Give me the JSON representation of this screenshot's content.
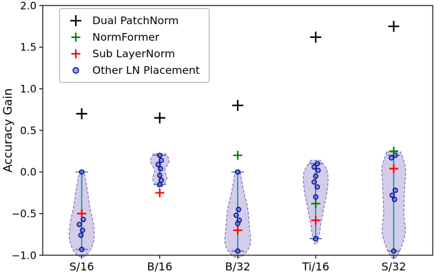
{
  "chart_data": {
    "type": "violin+scatter",
    "title": "",
    "xlabel": "",
    "ylabel": "Accuracy Gain",
    "ylim": [
      -1.0,
      2.0
    ],
    "yticks": [
      {
        "v": -1.0,
        "label": "−1.0"
      },
      {
        "v": -0.5,
        "label": "−0.5"
      },
      {
        "v": 0.0,
        "label": "0.0"
      },
      {
        "v": 0.5,
        "label": "0.5"
      },
      {
        "v": 1.0,
        "label": "1.0"
      },
      {
        "v": 1.5,
        "label": "1.5"
      },
      {
        "v": 2.0,
        "label": "2.0"
      }
    ],
    "categories": [
      "S/16",
      "B/16",
      "B/32",
      "Ti/16",
      "S/32"
    ],
    "legend": [
      {
        "label": "Dual PatchNorm",
        "marker": "plus",
        "color": "#000000"
      },
      {
        "label": "NormFormer",
        "marker": "plus",
        "color": "#008000"
      },
      {
        "label": "Sub LayerNorm",
        "marker": "plus",
        "color": "#ff0000"
      },
      {
        "label": "Other LN Placement",
        "marker": "circle",
        "color": "#00008b"
      }
    ],
    "series": {
      "dual_patchnorm": [
        0.7,
        0.65,
        0.8,
        1.62,
        1.75
      ],
      "normformer": [
        null,
        null,
        0.2,
        -0.38,
        0.25
      ],
      "sub_layernorm": [
        -0.5,
        -0.25,
        -0.7,
        -0.58,
        0.04
      ],
      "other_ln_placement": [
        [
          [
            0.0,
            0
          ],
          [
            -0.57,
            0.02
          ],
          [
            -0.63,
            -0.03
          ],
          [
            -0.7,
            0.01
          ],
          [
            -0.76,
            -0.01
          ],
          [
            -0.93,
            0
          ]
        ],
        [
          [
            0.2,
            0
          ],
          [
            0.14,
            0.02
          ],
          [
            0.09,
            -0.02
          ],
          [
            0.04,
            0.01
          ],
          [
            -0.04,
            0
          ],
          [
            -0.1,
            0.02
          ],
          [
            -0.15,
            0
          ]
        ],
        [
          [
            0.0,
            0
          ],
          [
            -0.45,
            0.01
          ],
          [
            -0.52,
            -0.02
          ],
          [
            -0.58,
            0.02
          ],
          [
            -0.62,
            0
          ],
          [
            -0.95,
            0
          ]
        ],
        [
          [
            0.1,
            0.02
          ],
          [
            0.06,
            -0.02
          ],
          [
            0.02,
            0.03
          ],
          [
            -0.05,
            0
          ],
          [
            -0.12,
            -0.02
          ],
          [
            -0.18,
            0.02
          ],
          [
            -0.3,
            0
          ],
          [
            -0.8,
            0
          ]
        ],
        [
          [
            0.2,
            0.02
          ],
          [
            0.17,
            -0.03
          ],
          [
            -0.22,
            0.02
          ],
          [
            -0.28,
            -0.02
          ],
          [
            -0.33,
            0.01
          ],
          [
            -0.95,
            0
          ]
        ]
      ]
    },
    "violins": [
      {
        "profile": [
          [
            0.02,
            0.025
          ],
          [
            -0.2,
            0.07
          ],
          [
            -0.4,
            0.1
          ],
          [
            -0.6,
            0.145
          ],
          [
            -0.78,
            0.16
          ],
          [
            -0.92,
            0.12
          ],
          [
            -1.01,
            0.04
          ]
        ]
      },
      {
        "profile": [
          [
            0.22,
            0.08
          ],
          [
            0.13,
            0.12
          ],
          [
            0.02,
            0.065
          ],
          [
            -0.08,
            0.09
          ],
          [
            -0.17,
            0.035
          ]
        ]
      },
      {
        "profile": [
          [
            0.02,
            0.03
          ],
          [
            -0.2,
            0.07
          ],
          [
            -0.45,
            0.13
          ],
          [
            -0.65,
            0.15
          ],
          [
            -0.87,
            0.16
          ],
          [
            -1.01,
            0.06
          ]
        ]
      },
      {
        "profile": [
          [
            0.14,
            0.06
          ],
          [
            0.0,
            0.15
          ],
          [
            -0.2,
            0.15
          ],
          [
            -0.4,
            0.11
          ],
          [
            -0.6,
            0.07
          ],
          [
            -0.84,
            0.025
          ]
        ]
      },
      {
        "profile": [
          [
            0.24,
            0.09
          ],
          [
            0.05,
            0.15
          ],
          [
            -0.2,
            0.14
          ],
          [
            -0.5,
            0.13
          ],
          [
            -0.75,
            0.145
          ],
          [
            -1.01,
            0.04
          ]
        ]
      }
    ],
    "style": {
      "violin_fill": "#a79cd4",
      "violin_fill_opacity": 0.5,
      "violin_edge": "#7d6fc0",
      "center_line": "#1f8fa8",
      "cap_color": "#3f7ec2",
      "dot_edge": "#00008b",
      "dot_fill": "#4d5fd0",
      "axis_color": "#000000"
    }
  }
}
